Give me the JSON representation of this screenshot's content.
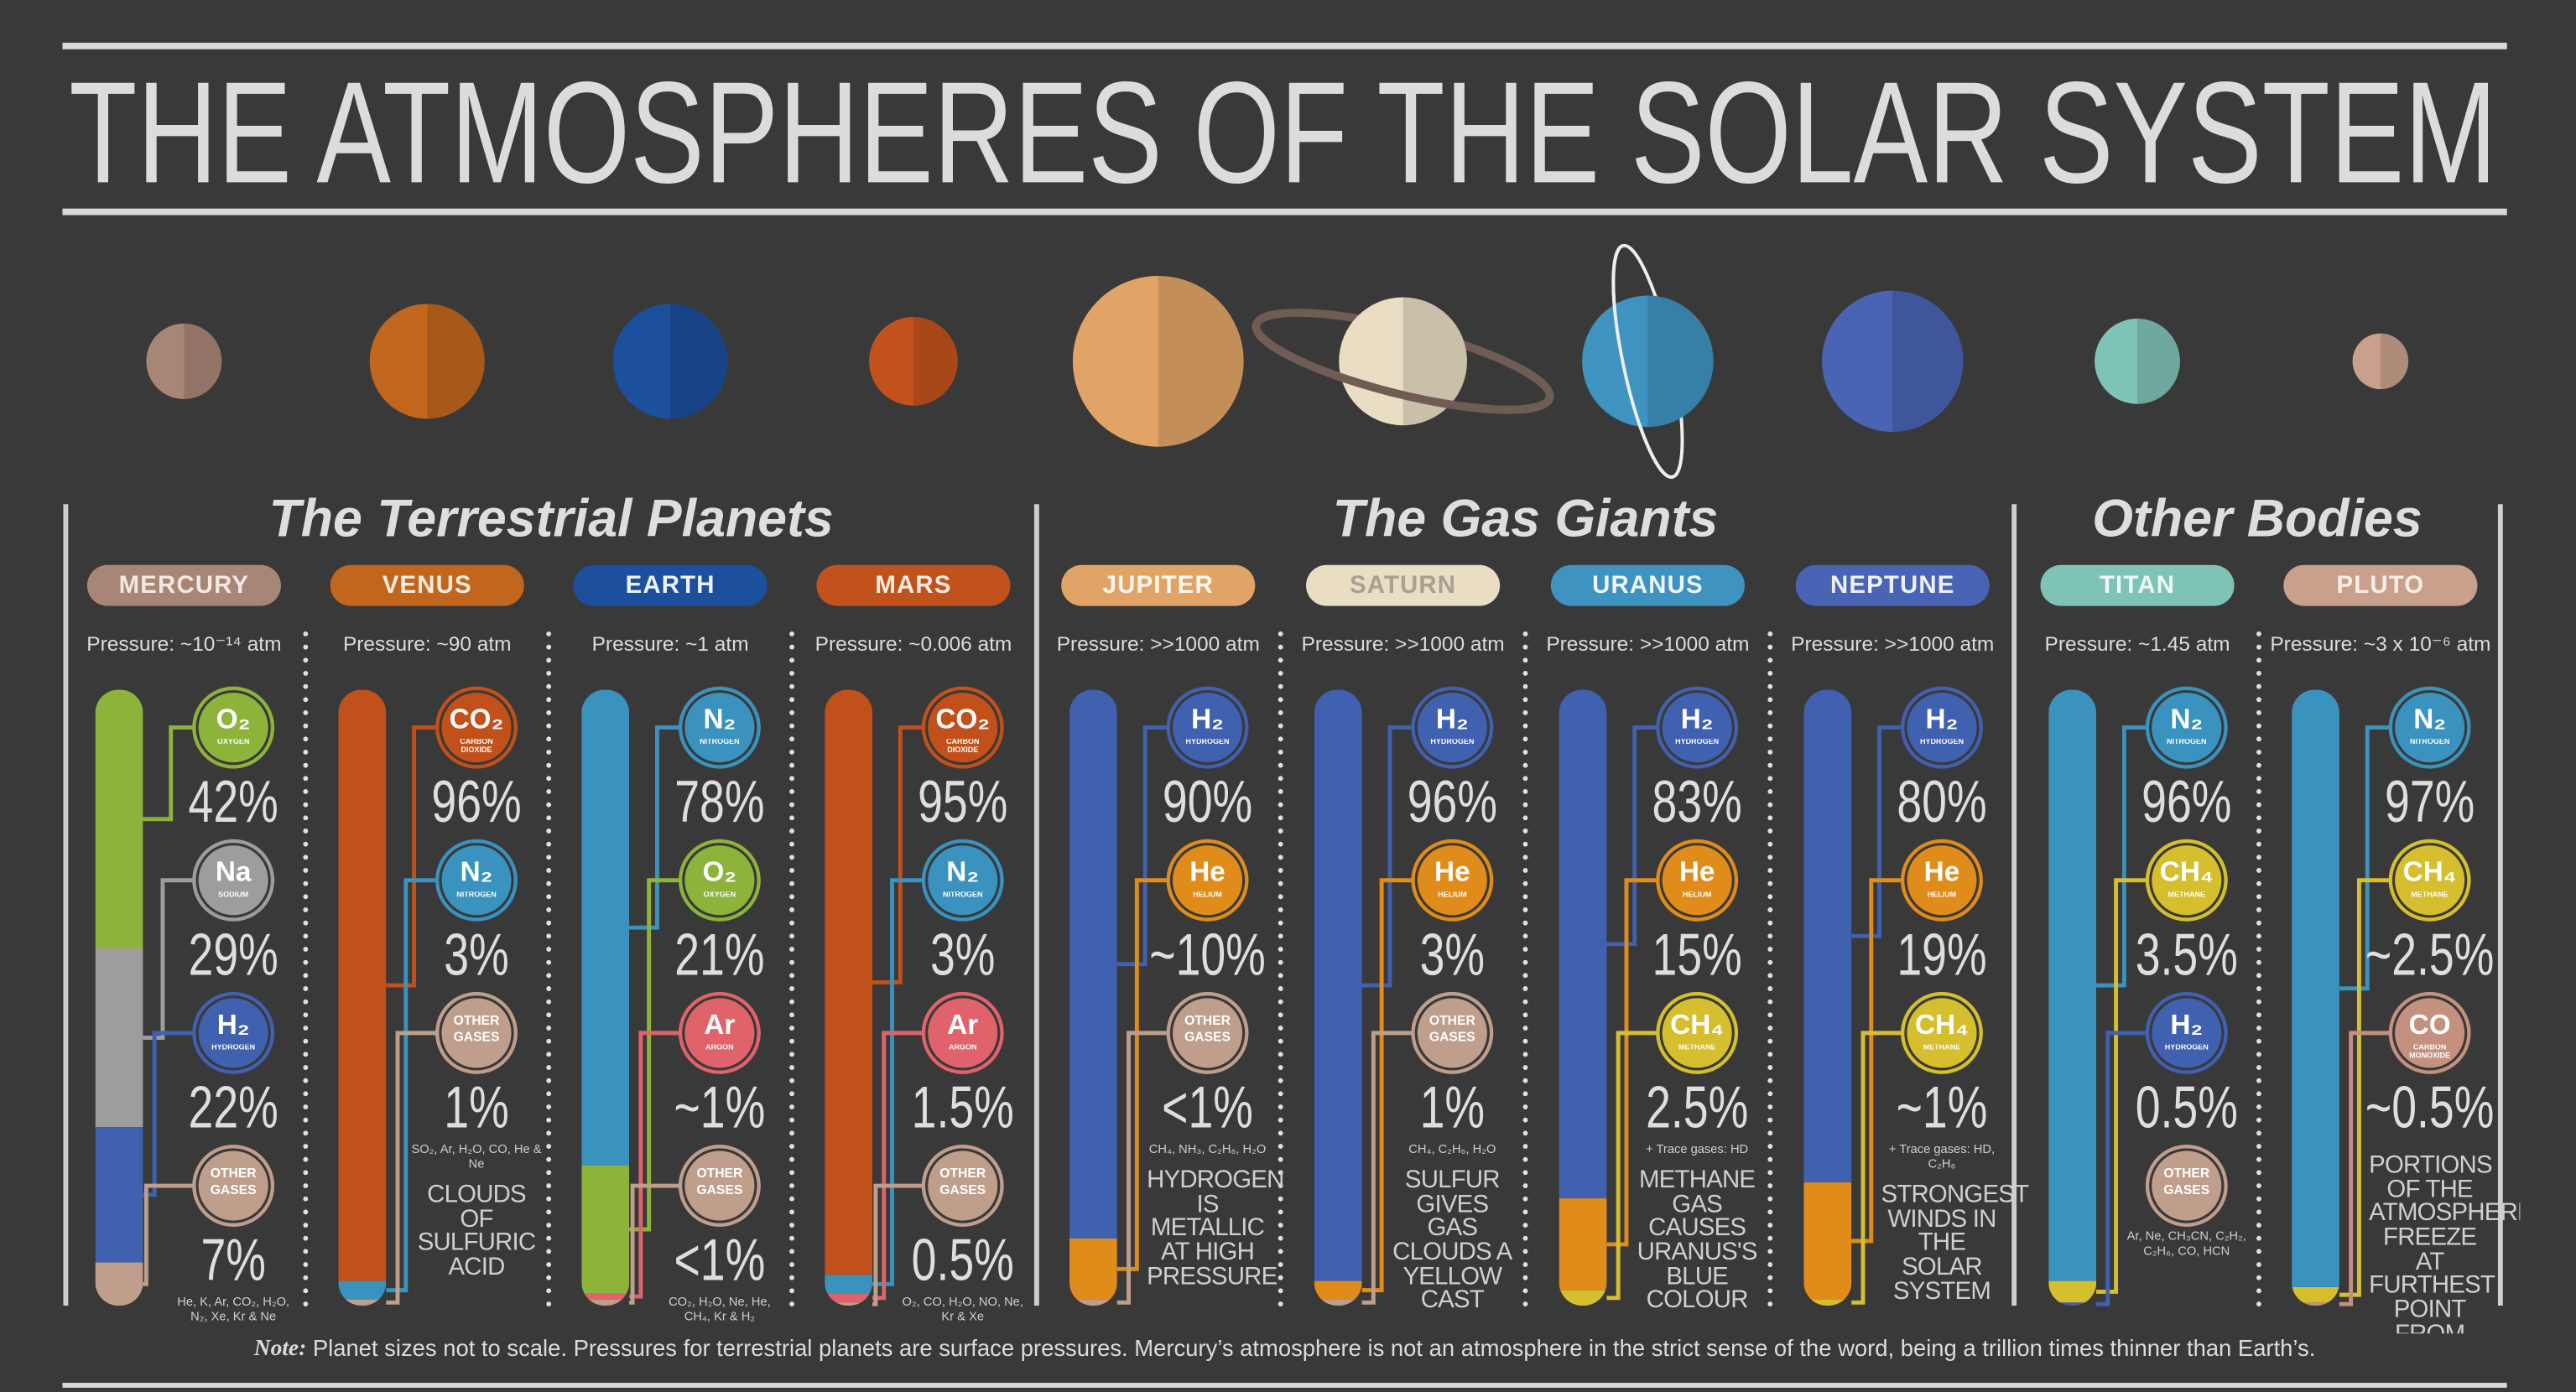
{
  "header": {
    "title": "THE ATMOSPHERES OF THE SOLAR SYSTEM"
  },
  "groups": [
    {
      "title": "The Terrestrial Planets",
      "bodies": [
        {
          "name": "MERCURY",
          "color": "#a88676",
          "label_color": "#f2e8e2",
          "pressure": "Pressure: ~10⁻¹⁴ atm",
          "gases": [
            {
              "symbol": "O₂",
              "name": "OXYGEN",
              "color": "#8db33a",
              "value": 42,
              "label": "42%"
            },
            {
              "symbol": "Na",
              "name": "SODIUM",
              "color": "#9d9d9d",
              "value": 29,
              "label": "29%"
            },
            {
              "symbol": "H₂",
              "name": "HYDROGEN",
              "color": "#4060b0",
              "value": 22,
              "label": "22%"
            },
            {
              "symbol": null,
              "name": "OTHER GASES",
              "color": "#bf9e8c",
              "value": 7,
              "label": "7%"
            }
          ],
          "trace": "He, K, Ar, CO₂, H₂O, N₂, Xe, Kr & Ne",
          "note": null
        },
        {
          "name": "VENUS",
          "color": "#c1661c",
          "label_color": "#f7ece2",
          "pressure": "Pressure: ~90 atm",
          "gases": [
            {
              "symbol": "CO₂",
              "name": "CARBON DIOXIDE",
              "color": "#c1501a",
              "value": 96,
              "label": "96%"
            },
            {
              "symbol": "N₂",
              "name": "NITROGEN",
              "color": "#3a92be",
              "value": 3,
              "label": "3%"
            },
            {
              "symbol": null,
              "name": "OTHER GASES",
              "color": "#bf9e8c",
              "value": 1,
              "label": "1%"
            }
          ],
          "trace": "SO₂, Ar, H₂O, CO, He & Ne",
          "note": "CLOUDS OF SULFURIC ACID"
        },
        {
          "name": "EARTH",
          "color": "#1c4f9c",
          "label_color": "#eef2fa",
          "pressure": "Pressure: ~1 atm",
          "gases": [
            {
              "symbol": "N₂",
              "name": "NITROGEN",
              "color": "#3a92be",
              "value": 78,
              "label": "78%"
            },
            {
              "symbol": "O₂",
              "name": "OXYGEN",
              "color": "#8db33a",
              "value": 21,
              "label": "21%"
            },
            {
              "symbol": "Ar",
              "name": "ARGON",
              "color": "#e0636b",
              "value": 1,
              "label": "~1%"
            },
            {
              "symbol": null,
              "name": "OTHER GASES",
              "color": "#bf9e8c",
              "value": 1,
              "label": "<1%"
            }
          ],
          "trace": "CO₂, H₂O, Ne, He, CH₄, Kr & H₂",
          "note": null
        },
        {
          "name": "MARS",
          "color": "#c1521c",
          "label_color": "#f7ece2",
          "pressure": "Pressure: ~0.006 atm",
          "gases": [
            {
              "symbol": "CO₂",
              "name": "CARBON DIOXIDE",
              "color": "#c1501a",
              "value": 95,
              "label": "95%"
            },
            {
              "symbol": "N₂",
              "name": "NITROGEN",
              "color": "#3a92be",
              "value": 3,
              "label": "3%"
            },
            {
              "symbol": "Ar",
              "name": "ARGON",
              "color": "#e0636b",
              "value": 1.5,
              "label": "1.5%"
            },
            {
              "symbol": null,
              "name": "OTHER GASES",
              "color": "#bf9e8c",
              "value": 0.5,
              "label": "0.5%"
            }
          ],
          "trace": "O₂, CO, H₂O, NO, Ne, Kr & Xe",
          "note": null
        }
      ]
    },
    {
      "title": "The Gas Giants",
      "bodies": [
        {
          "name": "JUPITER",
          "color": "#e2a466",
          "label_color": "#fff8f0",
          "pressure": "Pressure: >>1000 atm",
          "gases": [
            {
              "symbol": "H₂",
              "name": "HYDROGEN",
              "color": "#4060b0",
              "value": 90,
              "label": "90%"
            },
            {
              "symbol": "He",
              "name": "HELIUM",
              "color": "#e08c1a",
              "value": 10,
              "label": "~10%"
            },
            {
              "symbol": null,
              "name": "OTHER GASES",
              "color": "#bf9e8c",
              "value": 1,
              "label": "<1%"
            }
          ],
          "trace": "CH₄, NH₃, C₂H₆, H₂O",
          "note": "HYDROGEN IS METALLIC AT HIGH PRESSURE"
        },
        {
          "name": "SATURN",
          "color": "#e9ddc3",
          "label_color": "#a8a090",
          "pressure": "Pressure: >>1000 atm",
          "gases": [
            {
              "symbol": "H₂",
              "name": "HYDROGEN",
              "color": "#4060b0",
              "value": 96,
              "label": "96%"
            },
            {
              "symbol": "He",
              "name": "HELIUM",
              "color": "#e08c1a",
              "value": 3,
              "label": "3%"
            },
            {
              "symbol": null,
              "name": "OTHER GASES",
              "color": "#bf9e8c",
              "value": 1,
              "label": "1%"
            }
          ],
          "trace": "CH₄, C₂H₆, H₂O",
          "note": "SULFUR GIVES GAS CLOUDS A YELLOW CAST"
        },
        {
          "name": "URANUS",
          "color": "#3e93c0",
          "label_color": "#eef6fb",
          "pressure": "Pressure: >>1000 atm",
          "gases": [
            {
              "symbol": "H₂",
              "name": "HYDROGEN",
              "color": "#4060b0",
              "value": 83,
              "label": "83%"
            },
            {
              "symbol": "He",
              "name": "HELIUM",
              "color": "#e08c1a",
              "value": 15,
              "label": "15%"
            },
            {
              "symbol": "CH₄",
              "name": "METHANE",
              "color": "#d5bf2e",
              "value": 2.5,
              "label": "2.5%"
            }
          ],
          "trace": "+ Trace gases: HD",
          "note": "METHANE GAS CAUSES URANUS'S BLUE COLOUR"
        },
        {
          "name": "NEPTUNE",
          "color": "#4963b5",
          "label_color": "#eef0fa",
          "pressure": "Pressure: >>1000 atm",
          "gases": [
            {
              "symbol": "H₂",
              "name": "HYDROGEN",
              "color": "#4060b0",
              "value": 80,
              "label": "80%"
            },
            {
              "symbol": "He",
              "name": "HELIUM",
              "color": "#e08c1a",
              "value": 19,
              "label": "19%"
            },
            {
              "symbol": "CH₄",
              "name": "METHANE",
              "color": "#d5bf2e",
              "value": 1,
              "label": "~1%"
            }
          ],
          "trace": "+ Trace gases: HD, C₂H₆",
          "note": "STRONGEST WINDS IN THE SOLAR SYSTEM"
        }
      ]
    },
    {
      "title": "Other Bodies",
      "bodies": [
        {
          "name": "TITAN",
          "color": "#7fc2b6",
          "label_color": "#eef8f6",
          "pressure": "Pressure: ~1.45 atm",
          "gases": [
            {
              "symbol": "N₂",
              "name": "NITROGEN",
              "color": "#3a92be",
              "value": 96,
              "label": "96%"
            },
            {
              "symbol": "CH₄",
              "name": "METHANE",
              "color": "#d5bf2e",
              "value": 3.5,
              "label": "3.5%"
            },
            {
              "symbol": "H₂",
              "name": "HYDROGEN",
              "color": "#4060b0",
              "value": 0.5,
              "label": "0.5%"
            },
            {
              "symbol": null,
              "name": "OTHER GASES",
              "color": "#bf9e8c",
              "value": null,
              "label": null
            }
          ],
          "trace": "Ar, Ne, CH₃CN, C₂H₂, C₂H₆, CO, HCN",
          "note": null
        },
        {
          "name": "PLUTO",
          "color": "#c9a08b",
          "label_color": "#f8eee8",
          "pressure": "Pressure: ~3 x 10⁻⁶ atm",
          "gases": [
            {
              "symbol": "N₂",
              "name": "NITROGEN",
              "color": "#3a92be",
              "value": 97,
              "label": "97%"
            },
            {
              "symbol": "CH₄",
              "name": "METHANE",
              "color": "#d5bf2e",
              "value": 2.5,
              "label": "~2.5%"
            },
            {
              "symbol": "CO",
              "name": "CARBON MONOXIDE",
              "color": "#c4917e",
              "value": 0.5,
              "label": "~0.5%"
            }
          ],
          "trace": null,
          "note": "PORTIONS OF THE ATMOSPHERE FREEZE AT FURTHEST POINT FROM THE SUN"
        }
      ]
    }
  ],
  "footnote": {
    "label": "Note:",
    "text": " Planet sizes not to scale. Pressures for terrestrial planets are surface pressures. Mercury’s atmosphere is not an atmosphere in the strict sense of the word, being a trillion times thinner than Earth’s."
  }
}
